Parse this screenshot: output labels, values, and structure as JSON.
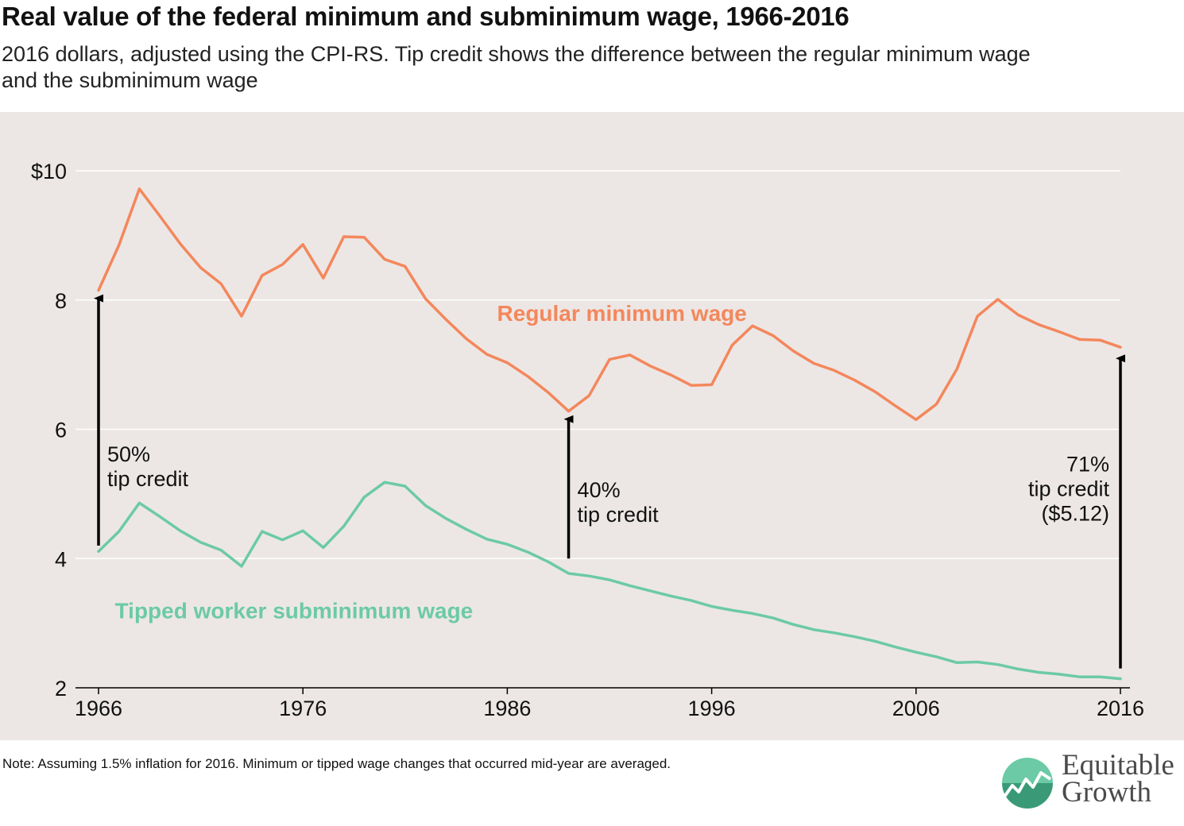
{
  "header": {
    "title": "Real value of the federal minimum and subminimum wage, 1966-2016",
    "subtitle": "2016 dollars, adjusted using the CPI-RS. Tip credit shows the difference between the regular minimum wage and the subminimum wage"
  },
  "footer": {
    "note": "Note: Assuming 1.5% inflation for 2016. Minimum or tipped wage changes that occurred mid-year are averaged.",
    "brand_line1": "Equitable",
    "brand_line2": "Growth"
  },
  "colors": {
    "regular": "#f4875c",
    "tipped": "#6ccaa6",
    "background": "#ece7e5",
    "grid": "#ffffff",
    "arrow": "#000000"
  },
  "chart_data": {
    "type": "line",
    "title": "Real value of the federal minimum and subminimum wage, 1966-2016",
    "xlabel": "",
    "ylabel": "",
    "xlim": [
      1966,
      2016
    ],
    "ylim": [
      2,
      10
    ],
    "grid": true,
    "x_ticks": [
      1966,
      1976,
      1986,
      1996,
      2006,
      2016
    ],
    "y_ticks": [
      {
        "value": 2,
        "label": "2"
      },
      {
        "value": 4,
        "label": "4"
      },
      {
        "value": 6,
        "label": "6"
      },
      {
        "value": 8,
        "label": "8"
      },
      {
        "value": 10,
        "label": "$10"
      }
    ],
    "x": [
      1966,
      1967,
      1968,
      1969,
      1970,
      1971,
      1972,
      1973,
      1974,
      1975,
      1976,
      1977,
      1978,
      1979,
      1980,
      1981,
      1982,
      1983,
      1984,
      1985,
      1986,
      1987,
      1988,
      1989,
      1990,
      1991,
      1992,
      1993,
      1994,
      1995,
      1996,
      1997,
      1998,
      1999,
      2000,
      2001,
      2002,
      2003,
      2004,
      2005,
      2006,
      2007,
      2008,
      2009,
      2010,
      2011,
      2012,
      2013,
      2014,
      2015,
      2016
    ],
    "series": [
      {
        "name": "Regular minimum wage",
        "color": "#f4875c",
        "values": [
          8.15,
          8.85,
          9.72,
          9.3,
          8.87,
          8.5,
          8.25,
          7.75,
          8.38,
          8.55,
          8.86,
          8.34,
          8.98,
          8.97,
          8.63,
          8.52,
          8.02,
          7.7,
          7.4,
          7.16,
          7.03,
          6.82,
          6.57,
          6.28,
          6.52,
          7.08,
          7.15,
          6.98,
          6.84,
          6.68,
          6.69,
          7.3,
          7.6,
          7.45,
          7.21,
          7.02,
          6.91,
          6.76,
          6.58,
          6.36,
          6.15,
          6.39,
          6.93,
          7.75,
          8.01,
          7.77,
          7.62,
          7.51,
          7.39,
          7.38,
          7.27
        ]
      },
      {
        "name": "Tipped worker subminimum wage",
        "color": "#6ccaa6",
        "values": [
          4.11,
          4.42,
          4.86,
          4.65,
          4.43,
          4.25,
          4.13,
          3.88,
          4.42,
          4.29,
          4.43,
          4.17,
          4.5,
          4.95,
          5.18,
          5.12,
          4.82,
          4.62,
          4.45,
          4.3,
          4.22,
          4.1,
          3.95,
          3.77,
          3.73,
          3.67,
          3.58,
          3.5,
          3.42,
          3.35,
          3.26,
          3.2,
          3.15,
          3.08,
          2.98,
          2.9,
          2.85,
          2.79,
          2.72,
          2.63,
          2.55,
          2.48,
          2.39,
          2.4,
          2.36,
          2.29,
          2.24,
          2.21,
          2.17,
          2.17,
          2.14
        ]
      }
    ],
    "annotations": [
      {
        "year": 1966,
        "from": 4.2,
        "to": 8.1,
        "lines": [
          "50%",
          "tip credit"
        ],
        "align": "left"
      },
      {
        "year": 1989,
        "from": 4.0,
        "to": 6.23,
        "lines": [
          "40%",
          "tip credit"
        ],
        "align": "left"
      },
      {
        "year": 2016,
        "from": 2.3,
        "to": 7.17,
        "lines": [
          "71%",
          "tip credit",
          "($5.12)"
        ],
        "align": "right"
      }
    ],
    "series_labels": [
      {
        "series": 0,
        "text": "Regular minimum wage",
        "at_year": 1985.5,
        "at_value": 7.8
      },
      {
        "series": 1,
        "text": "Tipped worker subminimum wage",
        "at_year": 1966.8,
        "at_value": 3.2
      }
    ]
  }
}
